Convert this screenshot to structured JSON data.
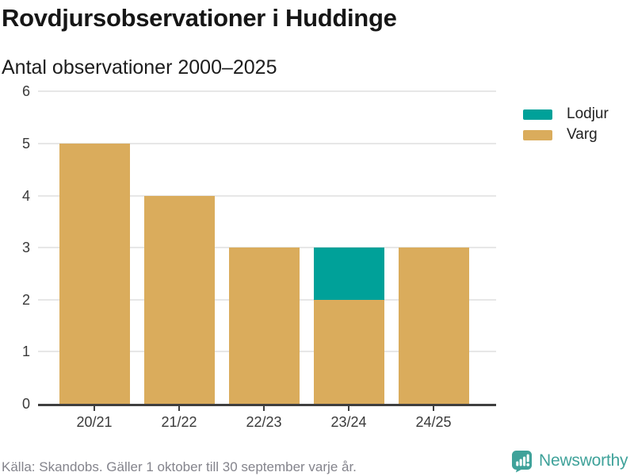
{
  "header": {
    "title": "Rovdjursobservationer i Huddinge",
    "subtitle": "Antal observationer 2000–2025"
  },
  "chart_data": {
    "type": "bar",
    "stacked": true,
    "title": "Rovdjursobservationer i Huddinge",
    "subtitle": "Antal observationer 2000–2025",
    "categories": [
      "20/21",
      "21/22",
      "22/23",
      "23/24",
      "24/25"
    ],
    "series": [
      {
        "name": "Lodjur",
        "color": "#00A199",
        "values": [
          0,
          0,
          0,
          1,
          0
        ]
      },
      {
        "name": "Varg",
        "color": "#DAAC5C",
        "values": [
          5,
          4,
          3,
          2,
          3
        ]
      }
    ],
    "totals": [
      5,
      4,
      3,
      3,
      3
    ],
    "xlabel": "",
    "ylabel": "",
    "ylim": [
      0,
      6
    ],
    "yticks": [
      0,
      1,
      2,
      3,
      4,
      5,
      6
    ],
    "grid": true,
    "legend_position": "right"
  },
  "legend": {
    "items": [
      {
        "label": "Lodjur",
        "color": "#00A199"
      },
      {
        "label": "Varg",
        "color": "#DAAC5C"
      }
    ]
  },
  "footer": {
    "source": "Källa: Skandobs. Gäller 1 oktober till 30 september varje år.",
    "brand": "Newsworthy",
    "brand_color": "#3FA29A"
  },
  "colors": {
    "lodjur": "#00A199",
    "varg": "#DAAC5C",
    "axis_line": "#3F3F3F",
    "gridline": "#E7E7E7",
    "text_dark": "#161616",
    "text_axis": "#3A3A3A",
    "text_source": "#84848C"
  }
}
